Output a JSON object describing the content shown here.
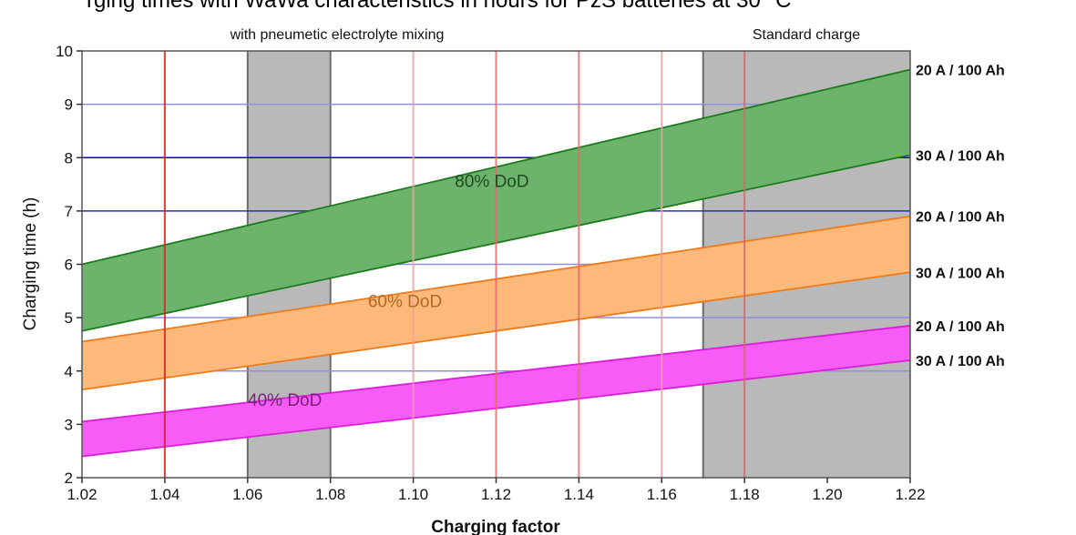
{
  "chart_data": {
    "type": "area",
    "title": "rging times with WaWa characteristics in hours for PzS batteries at 30 °C",
    "xlabel": "Charging factor",
    "ylabel": "Charging time (h)",
    "xlim": [
      1.02,
      1.22
    ],
    "ylim": [
      2,
      10
    ],
    "x_ticks": [
      "1.02",
      "1.04",
      "1.06",
      "1.08",
      "1.10",
      "1.12",
      "1.14",
      "1.16",
      "1.18",
      "1.20",
      "1.22"
    ],
    "y_ticks": [
      "2",
      "3",
      "4",
      "5",
      "6",
      "7",
      "8",
      "9",
      "10"
    ],
    "regions": [
      {
        "label": "with pneumetic electrolyte mixing",
        "x_range": [
          1.06,
          1.08
        ],
        "color": "#b9b9b9"
      },
      {
        "label": "Standard charge",
        "x_range": [
          1.17,
          1.22
        ],
        "color": "#b9b9b9"
      }
    ],
    "vertical_lines": [
      {
        "x": 1.04,
        "color": "#d81e1e"
      },
      {
        "x": 1.1,
        "color": "#f0a0a0"
      },
      {
        "x": 1.12,
        "color": "#e26a6a"
      },
      {
        "x": 1.14,
        "color": "#e26a6a"
      },
      {
        "x": 1.16,
        "color": "#f0a0a0"
      },
      {
        "x": 1.18,
        "color": "#cf6a6a"
      }
    ],
    "horizontal_lines": [
      {
        "y": 9,
        "color": "#8f8fe6"
      },
      {
        "y": 8,
        "color": "#0b0ba8"
      },
      {
        "y": 7,
        "color": "#2e2ebe"
      },
      {
        "y": 6,
        "color": "#8f8fe6"
      },
      {
        "y": 5,
        "color": "#8f8fe6"
      },
      {
        "y": 4,
        "color": "#8f8fe6"
      }
    ],
    "series": [
      {
        "name": "80% DoD",
        "color": "#6cb46c",
        "edge": "#1d7a1d",
        "label_color": "#1f4a1f",
        "label_at": [
          1.119,
          7.45
        ],
        "upper": {
          "label": "20 A / 100 Ah",
          "x": [
            1.02,
            1.22
          ],
          "y": [
            6.0,
            9.65
          ]
        },
        "lower": {
          "label": "30 A / 100 Ah",
          "x": [
            1.02,
            1.22
          ],
          "y": [
            4.75,
            8.05
          ]
        }
      },
      {
        "name": "60% DoD",
        "color": "#fdb97a",
        "edge": "#ee7a1a",
        "label_color": "#b06a26",
        "label_at": [
          1.098,
          5.2
        ],
        "upper": {
          "label": "20 A / 100 Ah",
          "x": [
            1.02,
            1.22
          ],
          "y": [
            4.55,
            6.9
          ]
        },
        "lower": {
          "label": "30 A / 100 Ah",
          "x": [
            1.02,
            1.22
          ],
          "y": [
            3.65,
            5.85
          ]
        }
      },
      {
        "name": "40% DoD",
        "color": "#f75cf7",
        "edge": "#d91fd9",
        "label_color": "#7a1f7a",
        "label_at": [
          1.069,
          3.35
        ],
        "upper": {
          "label": "20 A / 100 Ah",
          "x": [
            1.02,
            1.22
          ],
          "y": [
            3.05,
            4.85
          ]
        },
        "lower": {
          "label": "30 A / 100 Ah",
          "x": [
            1.02,
            1.22
          ],
          "y": [
            2.4,
            4.2
          ]
        }
      }
    ]
  }
}
